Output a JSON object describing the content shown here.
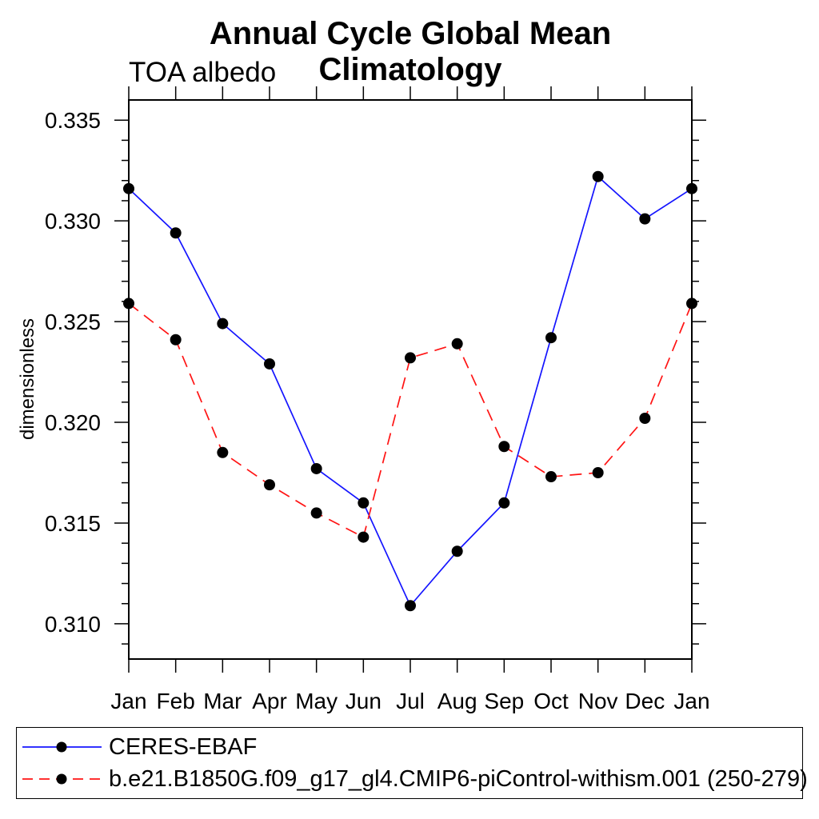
{
  "page": {
    "background": "#ffffff",
    "axis_color": "#000000"
  },
  "chart_data": {
    "type": "line",
    "title": "Annual Cycle Global Mean Climatology",
    "subtitle": "TOA albedo",
    "ylabel": "dimensionless",
    "xlabel": "",
    "categories": [
      "Jan",
      "Feb",
      "Mar",
      "Apr",
      "May",
      "Jun",
      "Jul",
      "Aug",
      "Sep",
      "Oct",
      "Nov",
      "Dec",
      "Jan"
    ],
    "ylim": [
      0.30825,
      0.336
    ],
    "yticks_major": [
      0.31,
      0.315,
      0.32,
      0.325,
      0.33,
      0.335
    ],
    "ytick_labels": [
      "0.310",
      "0.315",
      "0.320",
      "0.325",
      "0.330",
      "0.335"
    ],
    "ytick_minor_step": 0.001,
    "grid": false,
    "legend_position": "bottom",
    "marker": {
      "shape": "circle",
      "color": "#000000",
      "radius": 7
    },
    "series": [
      {
        "name": "CERES-EBAF",
        "color": "#1414ff",
        "line_style": "solid",
        "values": [
          0.3316,
          0.3294,
          0.3249,
          0.3229,
          0.3177,
          0.316,
          0.3109,
          0.3136,
          0.316,
          0.3242,
          0.3322,
          0.3301,
          0.3316
        ]
      },
      {
        "name": "b.e21.B1850G.f09_g17_gl4.CMIP6-piControl-withism.001 (250-279)",
        "color": "#ff1414",
        "line_style": "dashed",
        "values": [
          0.3259,
          0.3241,
          0.3185,
          0.3169,
          0.3155,
          0.3143,
          0.3232,
          0.3239,
          0.3188,
          0.3173,
          0.3175,
          0.3202,
          0.3259
        ]
      }
    ]
  }
}
